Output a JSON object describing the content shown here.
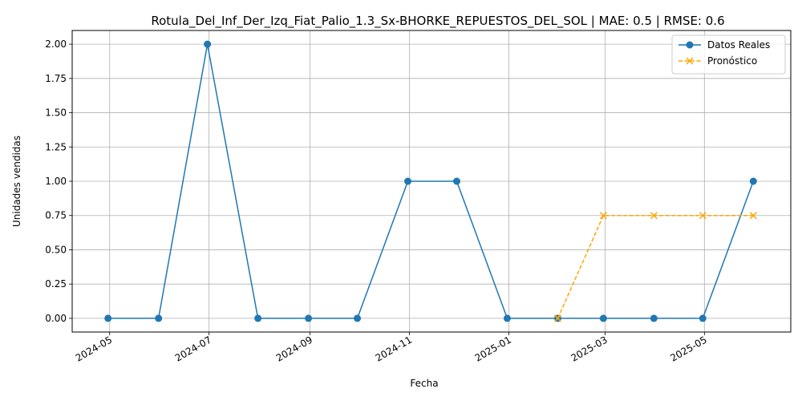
{
  "chart_data": {
    "type": "line",
    "title": "Rotula_Del_Inf_Der_Izq_Fiat_Palio_1.3_Sx-BHORKE_REPUESTOS_DEL_SOL | MAE: 0.5 | RMSE: 0.6",
    "xlabel": "Fecha",
    "ylabel": "Unidades vendidas",
    "xlim": [
      "2024-04-08",
      "2025-06-23"
    ],
    "ylim": [
      -0.1,
      2.1
    ],
    "x_ticks": [
      "2024-05",
      "2024-07",
      "2024-09",
      "2024-11",
      "2025-01",
      "2025-03",
      "2025-05"
    ],
    "y_ticks": [
      "0.00",
      "0.25",
      "0.50",
      "0.75",
      "1.00",
      "1.25",
      "1.50",
      "1.75",
      "2.00"
    ],
    "grid": true,
    "legend_position": "top-right",
    "series": [
      {
        "name": "Datos Reales",
        "color": "#1f77b4",
        "style": "solid",
        "marker": "circle",
        "points": [
          {
            "x": "2024-04-30",
            "y": 0
          },
          {
            "x": "2024-05-31",
            "y": 0
          },
          {
            "x": "2024-06-30",
            "y": 2
          },
          {
            "x": "2024-07-31",
            "y": 0
          },
          {
            "x": "2024-08-31",
            "y": 0
          },
          {
            "x": "2024-09-30",
            "y": 0
          },
          {
            "x": "2024-10-31",
            "y": 1
          },
          {
            "x": "2024-11-30",
            "y": 1
          },
          {
            "x": "2024-12-31",
            "y": 0
          },
          {
            "x": "2025-01-31",
            "y": 0
          },
          {
            "x": "2025-02-28",
            "y": 0
          },
          {
            "x": "2025-03-31",
            "y": 0
          },
          {
            "x": "2025-04-30",
            "y": 0
          },
          {
            "x": "2025-05-31",
            "y": 1
          }
        ]
      },
      {
        "name": "Pronóstico",
        "color": "#ffa500",
        "style": "dashed",
        "marker": "x",
        "points": [
          {
            "x": "2025-01-31",
            "y": 0
          },
          {
            "x": "2025-02-28",
            "y": 0.75
          },
          {
            "x": "2025-03-31",
            "y": 0.75
          },
          {
            "x": "2025-04-30",
            "y": 0.75
          },
          {
            "x": "2025-05-31",
            "y": 0.75
          }
        ]
      }
    ]
  }
}
